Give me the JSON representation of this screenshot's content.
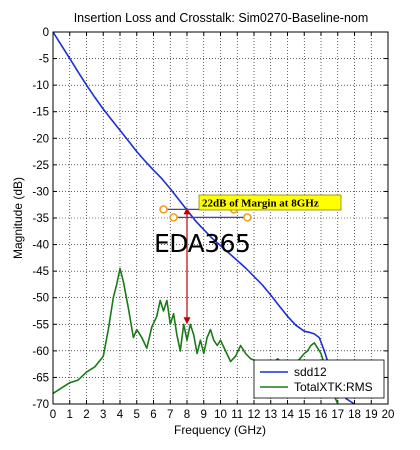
{
  "chart_data": {
    "type": "line",
    "title": "Insertion Loss and Crosstalk:  Sim0270-Baseline-nom",
    "xlabel": "Frequency (GHz)",
    "ylabel": "Magnitude (dB)",
    "xlim": [
      0,
      20
    ],
    "ylim": [
      -70,
      0
    ],
    "x_ticks": [
      0,
      1,
      2,
      3,
      4,
      5,
      6,
      7,
      8,
      9,
      10,
      11,
      12,
      13,
      14,
      15,
      16,
      17,
      18,
      19,
      20
    ],
    "y_ticks": [
      0,
      -5,
      -10,
      -15,
      -20,
      -25,
      -30,
      -35,
      -40,
      -45,
      -50,
      -55,
      -60,
      -65,
      -70
    ],
    "grid": true,
    "legend_position": "bottom-right",
    "series": [
      {
        "name": "sdd12",
        "color": "#1a2fd6",
        "x": [
          0,
          0.5,
          1,
          1.5,
          2,
          2.5,
          3,
          3.5,
          4,
          4.5,
          5,
          5.5,
          6,
          6.5,
          7,
          7.5,
          8,
          8.5,
          9,
          9.5,
          10,
          10.5,
          11,
          11.5,
          12,
          12.5,
          13,
          13.5,
          14,
          14.5,
          15,
          15.3,
          15.6,
          15.9,
          16.2,
          16.5,
          17,
          17.5,
          18
        ],
        "y": [
          0,
          -2.5,
          -5,
          -7.5,
          -10,
          -12.3,
          -14.5,
          -16.5,
          -18.5,
          -20.5,
          -22.5,
          -24.3,
          -26,
          -27.6,
          -29.5,
          -31.5,
          -33.5,
          -35.5,
          -37.2,
          -38.8,
          -40.2,
          -41.6,
          -43,
          -44.4,
          -46,
          -47.6,
          -49.5,
          -51.5,
          -53.5,
          -55.2,
          -56.3,
          -56.5,
          -56.8,
          -57.5,
          -60,
          -63,
          -66.5,
          -69,
          -70
        ]
      },
      {
        "name": "TotalXTK:RMS",
        "color": "#1a7a16",
        "x": [
          0,
          0.5,
          1,
          1.5,
          2,
          2.5,
          3,
          3.3,
          3.6,
          3.8,
          4.0,
          4.2,
          4.5,
          4.8,
          5,
          5.3,
          5.6,
          5.9,
          6.2,
          6.4,
          6.6,
          6.8,
          7,
          7.2,
          7.4,
          7.6,
          7.8,
          8,
          8.2,
          8.4,
          8.6,
          8.8,
          9,
          9.2,
          9.4,
          9.6,
          9.8,
          10,
          10.3,
          10.6,
          10.9,
          11.2,
          11.5,
          11.8,
          12.2,
          12.6,
          13,
          13.4,
          13.8,
          14.2,
          14.6,
          15,
          15.2,
          15.4,
          15.6,
          15.8,
          16,
          16.2,
          16.4,
          16.6,
          16.8,
          17
        ],
        "y": [
          -68,
          -67,
          -66,
          -65.5,
          -64,
          -63,
          -61,
          -56,
          -50,
          -47.5,
          -44.5,
          -47,
          -52,
          -57.5,
          -56,
          -57.5,
          -59.5,
          -55.5,
          -53.5,
          -50.5,
          -52.5,
          -50.5,
          -55,
          -53,
          -57,
          -60,
          -55,
          -58,
          -55,
          -57,
          -60.5,
          -58,
          -60.5,
          -57.5,
          -56,
          -58,
          -59,
          -58,
          -60,
          -62,
          -61,
          -59,
          -60.5,
          -61.5,
          -62,
          -62.5,
          -63,
          -61.5,
          -62.5,
          -63,
          -62,
          -60.5,
          -60,
          -59,
          -58.5,
          -59.5,
          -60.5,
          -62.5,
          -64.5,
          -66.5,
          -68.5,
          -70
        ]
      }
    ],
    "annotations": [
      {
        "text": "22dB of Margin  at 8GHz",
        "x": 8,
        "y_from": -33,
        "y_to": -55,
        "color": "#ffff00"
      }
    ],
    "watermark": "EDA365"
  }
}
